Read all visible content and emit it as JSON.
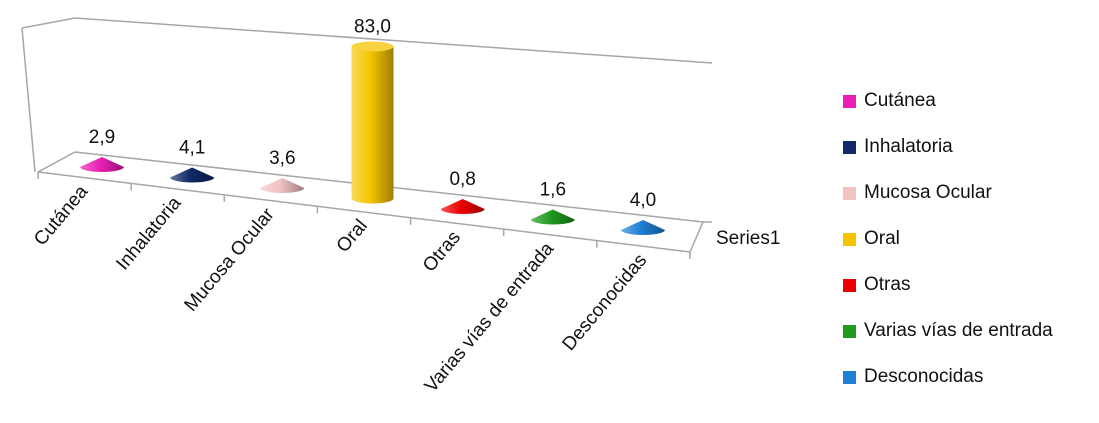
{
  "chart_data": {
    "type": "bar",
    "style": "3d-cone",
    "categories": [
      "Cutánea",
      "Inhalatoria",
      "Mucosa Ocular",
      "Oral",
      "Otras",
      "Varias vías de entrada",
      "Desconocidas"
    ],
    "series": [
      {
        "name": "Series1",
        "values": [
          2.9,
          4.1,
          3.6,
          83.0,
          0.8,
          1.6,
          4.0
        ],
        "value_labels": [
          "2,9",
          "4,1",
          "3,6",
          "83,0",
          "0,8",
          "1,6",
          "4,0"
        ]
      }
    ],
    "colors": [
      "#e91eb5",
      "#0f2a66",
      "#f0c2c2",
      "#f5c400",
      "#ee0000",
      "#1f9a1f",
      "#1f7fd6"
    ],
    "shapes": [
      "cone",
      "cone",
      "cone",
      "cylinder",
      "cone",
      "cone",
      "cone"
    ],
    "depth_axis_label": "Series1",
    "legend_position": "right",
    "grid": false
  }
}
